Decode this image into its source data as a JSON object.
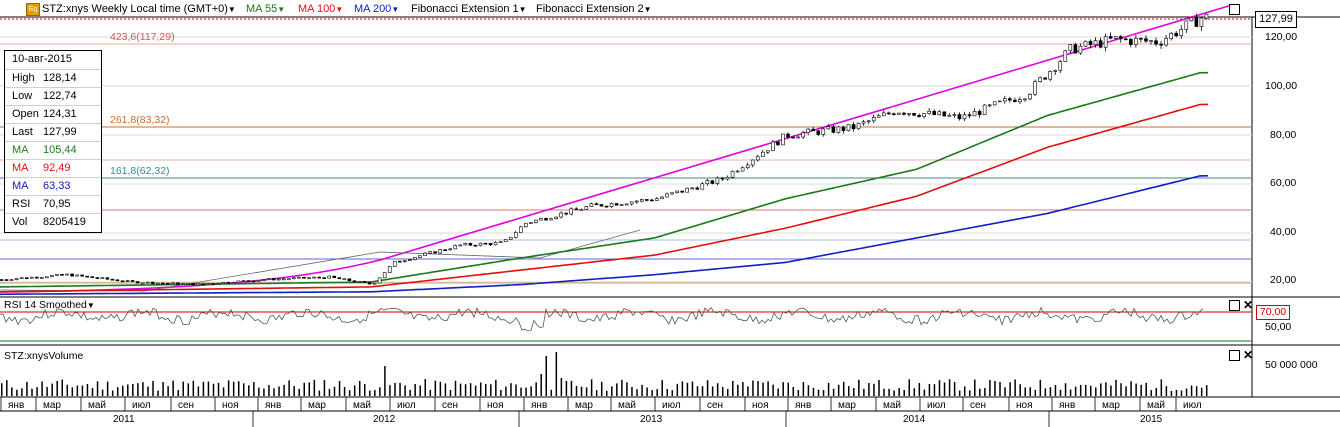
{
  "toolbar": {
    "logo_label": "Eq",
    "title": "STZ:xnys Weekly Local time (GMT+0)",
    "ma55": "MA 55",
    "ma100": "MA 100",
    "ma200": "MA 200",
    "fib1": "Fibonacci Extension 1",
    "fib2": "Fibonacci Extension 2"
  },
  "colors": {
    "ma55": "#1a7a1a",
    "ma100": "#e01010",
    "ma200": "#1020c0",
    "trendline": "#e000e0",
    "fib_423": "#e05050",
    "fib_261": "#c07030",
    "fib_161": "#3a8a8a",
    "rsi_line": "#555555",
    "rsi_level": "#d00000"
  },
  "info": {
    "date": "10-авг-2015",
    "rows": [
      {
        "label": "High",
        "value": "128,14"
      },
      {
        "label": "Low",
        "value": "122,74"
      },
      {
        "label": "Open",
        "value": "124,31"
      },
      {
        "label": "Last",
        "value": "127,99"
      },
      {
        "label": "MA",
        "value": "105,44"
      },
      {
        "label": "MA",
        "value": "92,49"
      },
      {
        "label": "MA",
        "value": "63,33"
      },
      {
        "label": "RSI",
        "value": "70,95"
      },
      {
        "label": "Vol",
        "value": "8205419"
      }
    ]
  },
  "fib_labels": {
    "l423": "423,6(117,29)",
    "l261": "261,8(83,32)",
    "l161": "161,8(62,32)"
  },
  "price_axis": {
    "last_price": "127,99",
    "ticks": [
      "120,00",
      "100,00",
      "80,00",
      "60,00",
      "40,00",
      "20,00"
    ]
  },
  "rsi_panel": {
    "title": "RSI 14 Smoothed",
    "level_tag": "70,00",
    "tick": "50,00"
  },
  "volume_panel": {
    "title": "STZ:xnysVolume",
    "tick": "50 000 000"
  },
  "time_axis": {
    "months": [
      "янв",
      "мар",
      "май",
      "июл",
      "сен",
      "ноя",
      "янв",
      "мар",
      "май",
      "июл",
      "сен",
      "ноя",
      "янв",
      "мар",
      "май",
      "июл",
      "сен",
      "ноя",
      "янв",
      "мар",
      "май",
      "июл",
      "сен",
      "ноя",
      "янв",
      "мар",
      "май",
      "июл"
    ],
    "years": [
      "2011",
      "2012",
      "2013",
      "2014",
      "2015"
    ]
  },
  "chart_data": {
    "type": "candlestick",
    "symbol": "STZ:xnys",
    "interval": "Weekly",
    "price_range": [
      12,
      132
    ],
    "price_ticks": [
      20,
      40,
      60,
      80,
      100,
      120
    ],
    "last": 127.99,
    "fib_levels": [
      {
        "label": "423,6",
        "value": 117.29
      },
      {
        "label": "261,8",
        "value": 83.32
      },
      {
        "label": "161,8",
        "value": 62.32
      }
    ],
    "weekly_close_approx": [
      {
        "t": "2011-01",
        "v": 21
      },
      {
        "t": "2011-04",
        "v": 23
      },
      {
        "t": "2011-07",
        "v": 20
      },
      {
        "t": "2011-10",
        "v": 19
      },
      {
        "t": "2012-01",
        "v": 21
      },
      {
        "t": "2012-04",
        "v": 22
      },
      {
        "t": "2012-06",
        "v": 19
      },
      {
        "t": "2012-07",
        "v": 28
      },
      {
        "t": "2012-10",
        "v": 35
      },
      {
        "t": "2012-12",
        "v": 36
      },
      {
        "t": "2013-01",
        "v": 44
      },
      {
        "t": "2013-04",
        "v": 51
      },
      {
        "t": "2013-07",
        "v": 54
      },
      {
        "t": "2013-10",
        "v": 62
      },
      {
        "t": "2014-01",
        "v": 80
      },
      {
        "t": "2014-04",
        "v": 83
      },
      {
        "t": "2014-06",
        "v": 90
      },
      {
        "t": "2014-09",
        "v": 87
      },
      {
        "t": "2014-12",
        "v": 97
      },
      {
        "t": "2015-02",
        "v": 115
      },
      {
        "t": "2015-04",
        "v": 119
      },
      {
        "t": "2015-06",
        "v": 118
      },
      {
        "t": "2015-08",
        "v": 128
      }
    ],
    "ma55_approx": [
      {
        "t": "2011-01",
        "v": 18
      },
      {
        "t": "2012-06",
        "v": 20
      },
      {
        "t": "2013-01",
        "v": 30
      },
      {
        "t": "2013-07",
        "v": 38
      },
      {
        "t": "2014-01",
        "v": 54
      },
      {
        "t": "2014-07",
        "v": 66
      },
      {
        "t": "2015-01",
        "v": 88
      },
      {
        "t": "2015-08",
        "v": 105.44
      }
    ],
    "ma100_approx": [
      {
        "t": "2011-01",
        "v": 16
      },
      {
        "t": "2012-06",
        "v": 18
      },
      {
        "t": "2013-01",
        "v": 25
      },
      {
        "t": "2013-07",
        "v": 31
      },
      {
        "t": "2014-01",
        "v": 42
      },
      {
        "t": "2014-07",
        "v": 55
      },
      {
        "t": "2015-01",
        "v": 75
      },
      {
        "t": "2015-08",
        "v": 92.49
      }
    ],
    "ma200_approx": [
      {
        "t": "2011-01",
        "v": 15
      },
      {
        "t": "2012-06",
        "v": 16
      },
      {
        "t": "2013-01",
        "v": 19
      },
      {
        "t": "2013-07",
        "v": 23
      },
      {
        "t": "2014-01",
        "v": 28
      },
      {
        "t": "2014-07",
        "v": 38
      },
      {
        "t": "2015-01",
        "v": 48
      },
      {
        "t": "2015-08",
        "v": 63.33
      }
    ],
    "rsi_last": 70.95,
    "volume_last": 8205419
  }
}
